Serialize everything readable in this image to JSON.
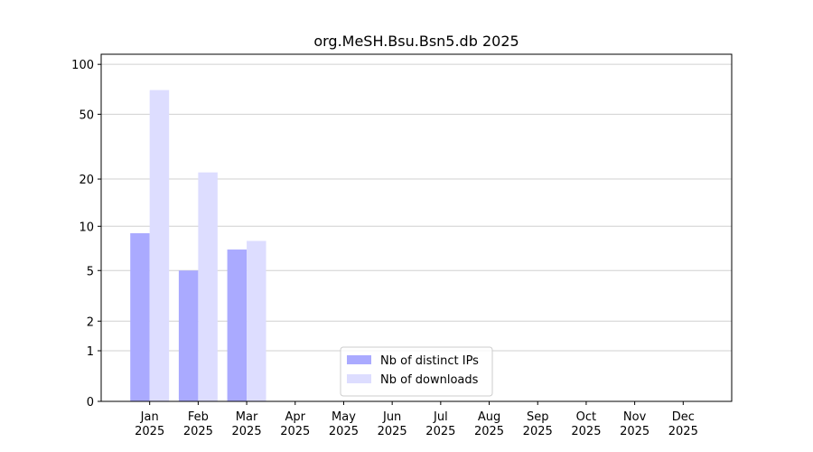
{
  "chart_data": {
    "type": "bar",
    "title": "org.MeSH.Bsu.Bsn5.db 2025",
    "categories": [
      "Jan 2025",
      "Feb 2025",
      "Mar 2025",
      "Apr 2025",
      "May 2025",
      "Jun 2025",
      "Jul 2025",
      "Aug 2025",
      "Sep 2025",
      "Oct 2025",
      "Nov 2025",
      "Dec 2025"
    ],
    "series": [
      {
        "name": "Nb of distinct IPs",
        "color": "#aaaaff",
        "values": [
          9,
          5,
          7,
          0,
          0,
          0,
          0,
          0,
          0,
          0,
          0,
          0
        ]
      },
      {
        "name": "Nb of downloads",
        "color": "#ddddff",
        "values": [
          70,
          22,
          8,
          0,
          0,
          0,
          0,
          0,
          0,
          0,
          0,
          0
        ]
      }
    ],
    "yscale": "symlog",
    "ylim": [
      0,
      115
    ],
    "yticks": [
      0,
      1,
      2,
      5,
      10,
      20,
      50,
      100
    ],
    "grid": true,
    "legend": "lower center"
  }
}
